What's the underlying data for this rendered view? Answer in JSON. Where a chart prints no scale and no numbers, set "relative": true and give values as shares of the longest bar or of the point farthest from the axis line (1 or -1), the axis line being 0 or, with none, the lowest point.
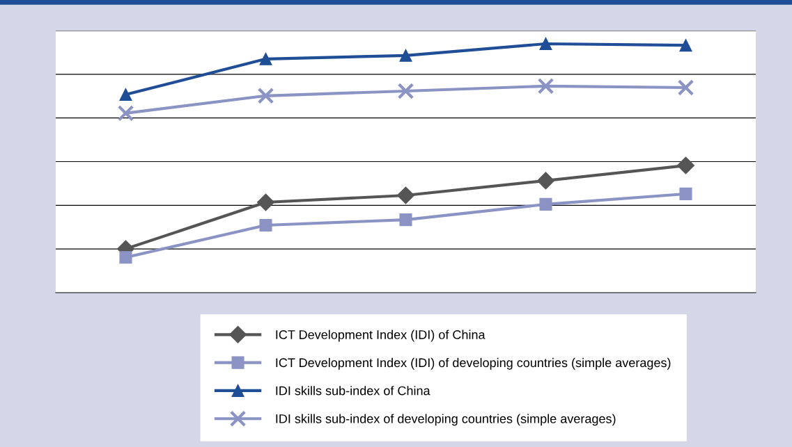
{
  "chart_data": {
    "type": "line",
    "relative": true,
    "categories": [
      null,
      null,
      null,
      null,
      null
    ],
    "grid": "y",
    "legend": "bottom",
    "series": [
      {
        "name": "ICT Development Index (IDI) of China",
        "color": "#555555",
        "marker": "diamond",
        "values": [
          0.176,
          0.363,
          0.391,
          0.45,
          0.511
        ]
      },
      {
        "name": "ICT Development Index (IDI) of developing countries (simple averages)",
        "color": "#8a93c4",
        "marker": "square",
        "values": [
          0.142,
          0.271,
          0.293,
          0.355,
          0.397
        ]
      },
      {
        "name": "IDI skills sub-index of China",
        "color": "#1f4e96",
        "marker": "triangle",
        "values": [
          0.796,
          0.939,
          0.953,
          1.0,
          0.994
        ]
      },
      {
        "name": "IDI skills sub-index of developing countries (simple averages)",
        "color": "#8a93c4",
        "marker": "cross",
        "values": [
          0.721,
          0.791,
          0.81,
          0.83,
          0.824
        ]
      }
    ]
  }
}
